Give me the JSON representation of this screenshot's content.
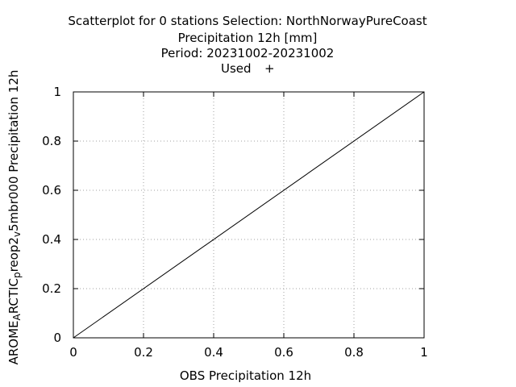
{
  "chart_data": {
    "type": "scatter",
    "title": [
      "Scatterplot for    0 stations Selection: NorthNorwayPureCoast",
      "Precipitation 12h [mm]",
      "Period: 20231002-20231002"
    ],
    "legend": {
      "label": "Used",
      "marker": "+",
      "placement": "top-center"
    },
    "xlabel": "OBS Precipitation 12h",
    "ylabel": {
      "parts": [
        {
          "text": "AROME",
          "sub": false
        },
        {
          "text": "A",
          "sub": true
        },
        {
          "text": "RCTIC",
          "sub": false
        },
        {
          "text": "p",
          "sub": true
        },
        {
          "text": "reop2",
          "sub": false
        },
        {
          "text": "v",
          "sub": true
        },
        {
          "text": "5mbr000 Precipitation 12h",
          "sub": false
        }
      ]
    },
    "xlim": [
      0,
      1
    ],
    "ylim": [
      0,
      1
    ],
    "x_ticks": [
      0,
      0.2,
      0.4,
      0.6,
      0.8,
      1
    ],
    "y_ticks": [
      0,
      0.2,
      0.4,
      0.6,
      0.8,
      1
    ],
    "x_tick_labels": [
      "0",
      "0.2",
      "0.4",
      "0.6",
      "0.8",
      "1"
    ],
    "y_tick_labels": [
      "0",
      "0.2",
      "0.4",
      "0.6",
      "0.8",
      "1"
    ],
    "grid": true,
    "reference_line": {
      "type": "diagonal",
      "from": [
        0,
        0
      ],
      "to": [
        1,
        1
      ]
    },
    "series": [
      {
        "name": "Used",
        "marker": "+",
        "points": []
      }
    ]
  }
}
